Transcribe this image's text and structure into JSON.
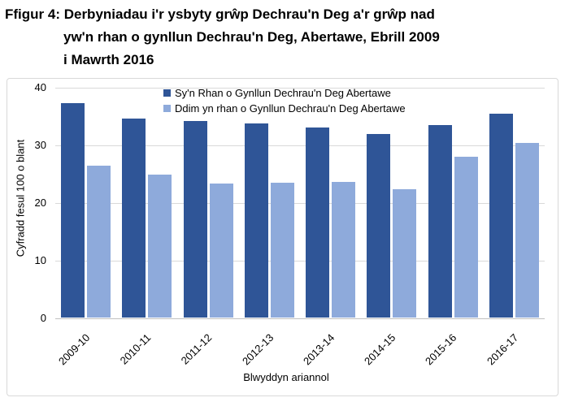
{
  "title": {
    "lines": [
      "Ffigur 4: Derbyniadau i'r ysbyty grŵp Dechrau'n Deg a'r grŵp nad",
      "yw'n rhan o gynllun Dechrau'n Deg, Abertawe, Ebrill 2009",
      "i Mawrth 2016"
    ]
  },
  "colors": {
    "series_dark": "#2F5597",
    "series_light": "#8EAADB",
    "gridline": "#D9D9D9",
    "axis_line": "#BFBFBF",
    "chart_border": "#D9D9D9",
    "text": "#000000"
  },
  "chart_data": {
    "type": "bar",
    "title": "Ffigur 4: Derbyniadau i'r ysbyty grŵp Dechrau'n Deg a'r grŵp nad yw'n rhan o gynllun Dechrau'n Deg, Abertawe, Ebrill 2009 i Mawrth 2016",
    "categories": [
      "2009-10",
      "2010-11",
      "2011-12",
      "2012-13",
      "2013-14",
      "2014-15",
      "2015-16",
      "2016-17"
    ],
    "series": [
      {
        "name": "Sy'n Rhan o Gynllun Dechrau'n Deg Abertawe",
        "color": "#2F5597",
        "values": [
          37.3,
          34.7,
          34.2,
          33.8,
          33.1,
          31.9,
          33.5,
          35.5
        ]
      },
      {
        "name": "Ddim yn rhan o Gynllun Dechrau'n Deg Abertawe",
        "color": "#8EAADB",
        "values": [
          26.4,
          24.9,
          23.4,
          23.5,
          23.7,
          22.4,
          28.0,
          30.4
        ]
      }
    ],
    "xlabel": "Blwyddyn ariannol",
    "ylabel": "Cyfradd fesul 100 o blant",
    "ylim": [
      0,
      40
    ],
    "y_ticks": [
      0,
      10,
      20,
      30,
      40
    ],
    "grid": "horizontal",
    "legend_position": "top-center"
  }
}
